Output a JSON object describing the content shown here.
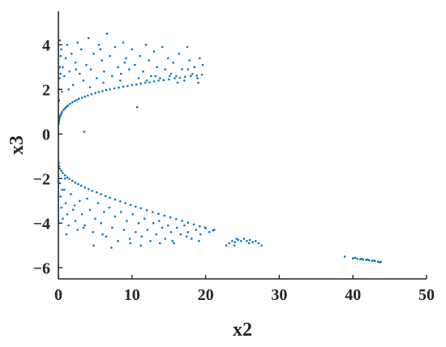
{
  "chart_data": {
    "type": "scatter",
    "title": "",
    "xlabel": "x2",
    "ylabel": "x3",
    "xlim": [
      0,
      50
    ],
    "ylim": [
      -6.5,
      5.5
    ],
    "xticks": [
      0,
      10,
      20,
      30,
      40,
      50
    ],
    "yticks": [
      -6,
      -4,
      -2,
      0,
      2,
      4
    ],
    "xtick_labels": [
      "0",
      "10",
      "20",
      "30",
      "40",
      "50"
    ],
    "ytick_labels": [
      "−6",
      "−4",
      "−2",
      "0",
      "2",
      "4"
    ],
    "grid": false,
    "legend": "none",
    "marker_color": "#0072bd",
    "series": [
      {
        "values": [
          [
            0.05,
            0.45
          ],
          [
            0.08,
            0.55
          ],
          [
            0.1,
            0.62
          ],
          [
            0.15,
            0.7
          ],
          [
            0.2,
            0.78
          ],
          [
            0.3,
            0.85
          ],
          [
            0.4,
            0.92
          ],
          [
            0.5,
            1.0
          ],
          [
            0.7,
            1.08
          ],
          [
            0.9,
            1.15
          ],
          [
            1.1,
            1.22
          ],
          [
            1.3,
            1.28
          ],
          [
            1.6,
            1.35
          ],
          [
            1.9,
            1.42
          ],
          [
            2.2,
            1.48
          ],
          [
            2.5,
            1.52
          ],
          [
            2.8,
            1.58
          ],
          [
            3.2,
            1.63
          ],
          [
            3.6,
            1.68
          ],
          [
            4.0,
            1.72
          ],
          [
            4.5,
            1.78
          ],
          [
            5.0,
            1.83
          ],
          [
            5.5,
            1.88
          ],
          [
            6.0,
            1.92
          ],
          [
            6.5,
            1.97
          ],
          [
            7.0,
            2.0
          ],
          [
            7.6,
            2.05
          ],
          [
            8.2,
            2.08
          ],
          [
            8.8,
            2.12
          ],
          [
            9.4,
            2.15
          ],
          [
            10.0,
            2.2
          ],
          [
            10.6,
            2.22
          ],
          [
            11.2,
            2.26
          ],
          [
            11.8,
            2.3
          ],
          [
            12.4,
            2.32
          ],
          [
            13.0,
            2.36
          ],
          [
            13.6,
            2.4
          ],
          [
            14.3,
            2.42
          ],
          [
            15.0,
            2.45
          ],
          [
            15.8,
            2.5
          ],
          [
            16.5,
            2.52
          ],
          [
            17.2,
            2.56
          ],
          [
            18.0,
            2.6
          ],
          [
            18.8,
            2.62
          ],
          [
            19.5,
            2.66
          ],
          [
            0.1,
            1.5
          ],
          [
            0.1,
            2.0
          ],
          [
            0.15,
            2.5
          ],
          [
            0.2,
            3.0
          ],
          [
            0.3,
            3.5
          ],
          [
            0.2,
            4.2
          ],
          [
            0.4,
            3.8
          ],
          [
            0.6,
            3.0
          ],
          [
            0.8,
            2.6
          ],
          [
            1.0,
            3.4
          ],
          [
            1.2,
            4.0
          ],
          [
            1.5,
            2.8
          ],
          [
            1.8,
            3.6
          ],
          [
            2.0,
            2.2
          ],
          [
            2.3,
            3.2
          ],
          [
            2.6,
            4.1
          ],
          [
            2.9,
            2.7
          ],
          [
            3.1,
            3.8
          ],
          [
            3.4,
            2.4
          ],
          [
            3.8,
            3.1
          ],
          [
            4.1,
            4.3
          ],
          [
            4.4,
            2.9
          ],
          [
            4.8,
            3.6
          ],
          [
            5.2,
            2.5
          ],
          [
            5.5,
            4.0
          ],
          [
            5.9,
            3.3
          ],
          [
            6.2,
            2.8
          ],
          [
            6.6,
            4.5
          ],
          [
            7.0,
            3.5
          ],
          [
            7.3,
            2.6
          ],
          [
            7.7,
            3.9
          ],
          [
            8.1,
            3.0
          ],
          [
            8.5,
            2.7
          ],
          [
            8.8,
            4.1
          ],
          [
            9.2,
            3.4
          ],
          [
            9.6,
            2.9
          ],
          [
            10.0,
            3.8
          ],
          [
            10.4,
            3.1
          ],
          [
            10.7,
            1.2
          ],
          [
            11.1,
            3.5
          ],
          [
            11.5,
            2.8
          ],
          [
            11.9,
            4.0
          ],
          [
            12.3,
            3.3
          ],
          [
            12.6,
            2.6
          ],
          [
            13.0,
            3.7
          ],
          [
            13.4,
            3.0
          ],
          [
            13.8,
            2.5
          ],
          [
            14.1,
            3.9
          ],
          [
            14.5,
            2.9
          ],
          [
            14.9,
            3.4
          ],
          [
            15.3,
            2.7
          ],
          [
            15.6,
            3.2
          ],
          [
            16.0,
            2.6
          ],
          [
            16.4,
            3.6
          ],
          [
            16.8,
            2.9
          ],
          [
            17.1,
            2.4
          ],
          [
            17.5,
            3.9
          ],
          [
            17.8,
            3.3
          ],
          [
            18.2,
            2.7
          ],
          [
            18.5,
            3.0
          ],
          [
            18.9,
            2.5
          ],
          [
            19.2,
            3.4
          ],
          [
            19.6,
            3.1
          ],
          [
            19.0,
            2.3
          ],
          [
            16.2,
            2.3
          ],
          [
            13.2,
            2.6
          ],
          [
            10.9,
            2.5
          ],
          [
            8.4,
            2.4
          ],
          [
            6.1,
            2.3
          ],
          [
            4.3,
            2.1
          ],
          [
            3.5,
            0.1
          ],
          [
            0.5,
            1.9
          ],
          [
            1.4,
            2.0
          ],
          [
            2.4,
            2.9
          ],
          [
            5.7,
            3.8
          ],
          [
            9.0,
            3.2
          ],
          [
            12.0,
            2.4
          ],
          [
            15.1,
            2.6
          ],
          [
            17.6,
            2.9
          ],
          [
            0.3,
            2.7
          ],
          [
            0.05,
            -1.3
          ],
          [
            0.1,
            -1.45
          ],
          [
            0.2,
            -1.55
          ],
          [
            0.4,
            -1.65
          ],
          [
            0.6,
            -1.75
          ],
          [
            0.9,
            -1.85
          ],
          [
            1.2,
            -1.95
          ],
          [
            1.5,
            -2.02
          ],
          [
            1.9,
            -2.1
          ],
          [
            2.3,
            -2.18
          ],
          [
            2.7,
            -2.25
          ],
          [
            3.1,
            -2.32
          ],
          [
            3.6,
            -2.4
          ],
          [
            4.1,
            -2.47
          ],
          [
            4.6,
            -2.55
          ],
          [
            5.2,
            -2.62
          ],
          [
            5.8,
            -2.7
          ],
          [
            6.4,
            -2.78
          ],
          [
            7.0,
            -2.86
          ],
          [
            7.7,
            -2.94
          ],
          [
            8.4,
            -3.02
          ],
          [
            9.1,
            -3.1
          ],
          [
            9.8,
            -3.18
          ],
          [
            10.5,
            -3.26
          ],
          [
            11.2,
            -3.33
          ],
          [
            12.0,
            -3.42
          ],
          [
            12.8,
            -3.5
          ],
          [
            13.6,
            -3.58
          ],
          [
            14.4,
            -3.66
          ],
          [
            15.2,
            -3.74
          ],
          [
            16.0,
            -3.82
          ],
          [
            16.8,
            -3.9
          ],
          [
            17.6,
            -3.98
          ],
          [
            18.4,
            -4.06
          ],
          [
            19.2,
            -4.14
          ],
          [
            20.0,
            -4.22
          ],
          [
            21.0,
            -4.32
          ],
          [
            0.2,
            -2.2
          ],
          [
            0.3,
            -2.8
          ],
          [
            0.4,
            -3.3
          ],
          [
            0.6,
            -3.8
          ],
          [
            0.8,
            -2.5
          ],
          [
            1.0,
            -3.1
          ],
          [
            1.2,
            -3.6
          ],
          [
            1.4,
            -4.1
          ],
          [
            1.7,
            -2.7
          ],
          [
            2.0,
            -3.4
          ],
          [
            2.3,
            -3.9
          ],
          [
            2.6,
            -4.3
          ],
          [
            2.9,
            -3.0
          ],
          [
            3.2,
            -3.6
          ],
          [
            3.6,
            -4.1
          ],
          [
            3.9,
            -2.9
          ],
          [
            4.3,
            -3.4
          ],
          [
            4.7,
            -4.4
          ],
          [
            5.0,
            -3.8
          ],
          [
            5.4,
            -3.1
          ],
          [
            5.8,
            -4.0
          ],
          [
            6.2,
            -3.5
          ],
          [
            6.5,
            -4.6
          ],
          [
            6.9,
            -3.3
          ],
          [
            7.3,
            -4.2
          ],
          [
            7.7,
            -3.7
          ],
          [
            8.1,
            -4.8
          ],
          [
            8.5,
            -3.5
          ],
          [
            8.9,
            -4.3
          ],
          [
            9.3,
            -3.9
          ],
          [
            9.7,
            -4.7
          ],
          [
            10.1,
            -3.6
          ],
          [
            10.5,
            -4.4
          ],
          [
            10.9,
            -4.0
          ],
          [
            11.3,
            -4.6
          ],
          [
            11.7,
            -3.8
          ],
          [
            12.1,
            -4.3
          ],
          [
            12.5,
            -4.8
          ],
          [
            12.9,
            -4.0
          ],
          [
            13.3,
            -4.5
          ],
          [
            13.7,
            -3.9
          ],
          [
            14.1,
            -4.2
          ],
          [
            14.5,
            -4.7
          ],
          [
            14.9,
            -4.1
          ],
          [
            15.3,
            -4.4
          ],
          [
            15.7,
            -4.9
          ],
          [
            16.1,
            -4.2
          ],
          [
            16.6,
            -4.5
          ],
          [
            17.1,
            -4.1
          ],
          [
            17.6,
            -4.4
          ],
          [
            18.1,
            -4.7
          ],
          [
            18.7,
            -4.3
          ],
          [
            19.3,
            -4.5
          ],
          [
            19.9,
            -4.2
          ],
          [
            20.5,
            -4.4
          ],
          [
            21.2,
            -4.3
          ],
          [
            4.8,
            -5.0
          ],
          [
            7.2,
            -5.1
          ],
          [
            9.8,
            -4.9
          ],
          [
            11.2,
            -5.0
          ],
          [
            13.8,
            -4.9
          ],
          [
            15.5,
            -4.8
          ],
          [
            17.4,
            -4.6
          ],
          [
            19.1,
            -4.8
          ],
          [
            6.0,
            -4.5
          ],
          [
            3.4,
            -4.2
          ],
          [
            2.2,
            -3.2
          ],
          [
            1.1,
            -4.5
          ],
          [
            0.9,
            -2.0
          ],
          [
            0.5,
            -2.5
          ],
          [
            22.8,
            -5.0
          ],
          [
            23.2,
            -4.9
          ],
          [
            23.6,
            -4.8
          ],
          [
            24.0,
            -4.85
          ],
          [
            24.4,
            -4.75
          ],
          [
            24.8,
            -4.8
          ],
          [
            25.2,
            -4.7
          ],
          [
            25.6,
            -4.8
          ],
          [
            26.0,
            -4.75
          ],
          [
            26.4,
            -4.85
          ],
          [
            26.8,
            -4.8
          ],
          [
            27.2,
            -4.9
          ],
          [
            27.6,
            -5.0
          ],
          [
            24.2,
            -4.7
          ],
          [
            25.9,
            -4.9
          ],
          [
            23.9,
            -5.0
          ],
          [
            38.9,
            -5.5
          ],
          [
            40.0,
            -5.58
          ],
          [
            40.6,
            -5.6
          ],
          [
            41.0,
            -5.62
          ],
          [
            41.4,
            -5.64
          ],
          [
            41.8,
            -5.65
          ],
          [
            42.2,
            -5.67
          ],
          [
            42.6,
            -5.69
          ],
          [
            43.0,
            -5.7
          ],
          [
            43.4,
            -5.72
          ],
          [
            43.8,
            -5.74
          ],
          [
            40.3,
            -5.56
          ],
          [
            41.2,
            -5.6
          ],
          [
            42.0,
            -5.63
          ],
          [
            42.9,
            -5.68
          ],
          [
            43.6,
            -5.75
          ]
        ]
      }
    ]
  }
}
